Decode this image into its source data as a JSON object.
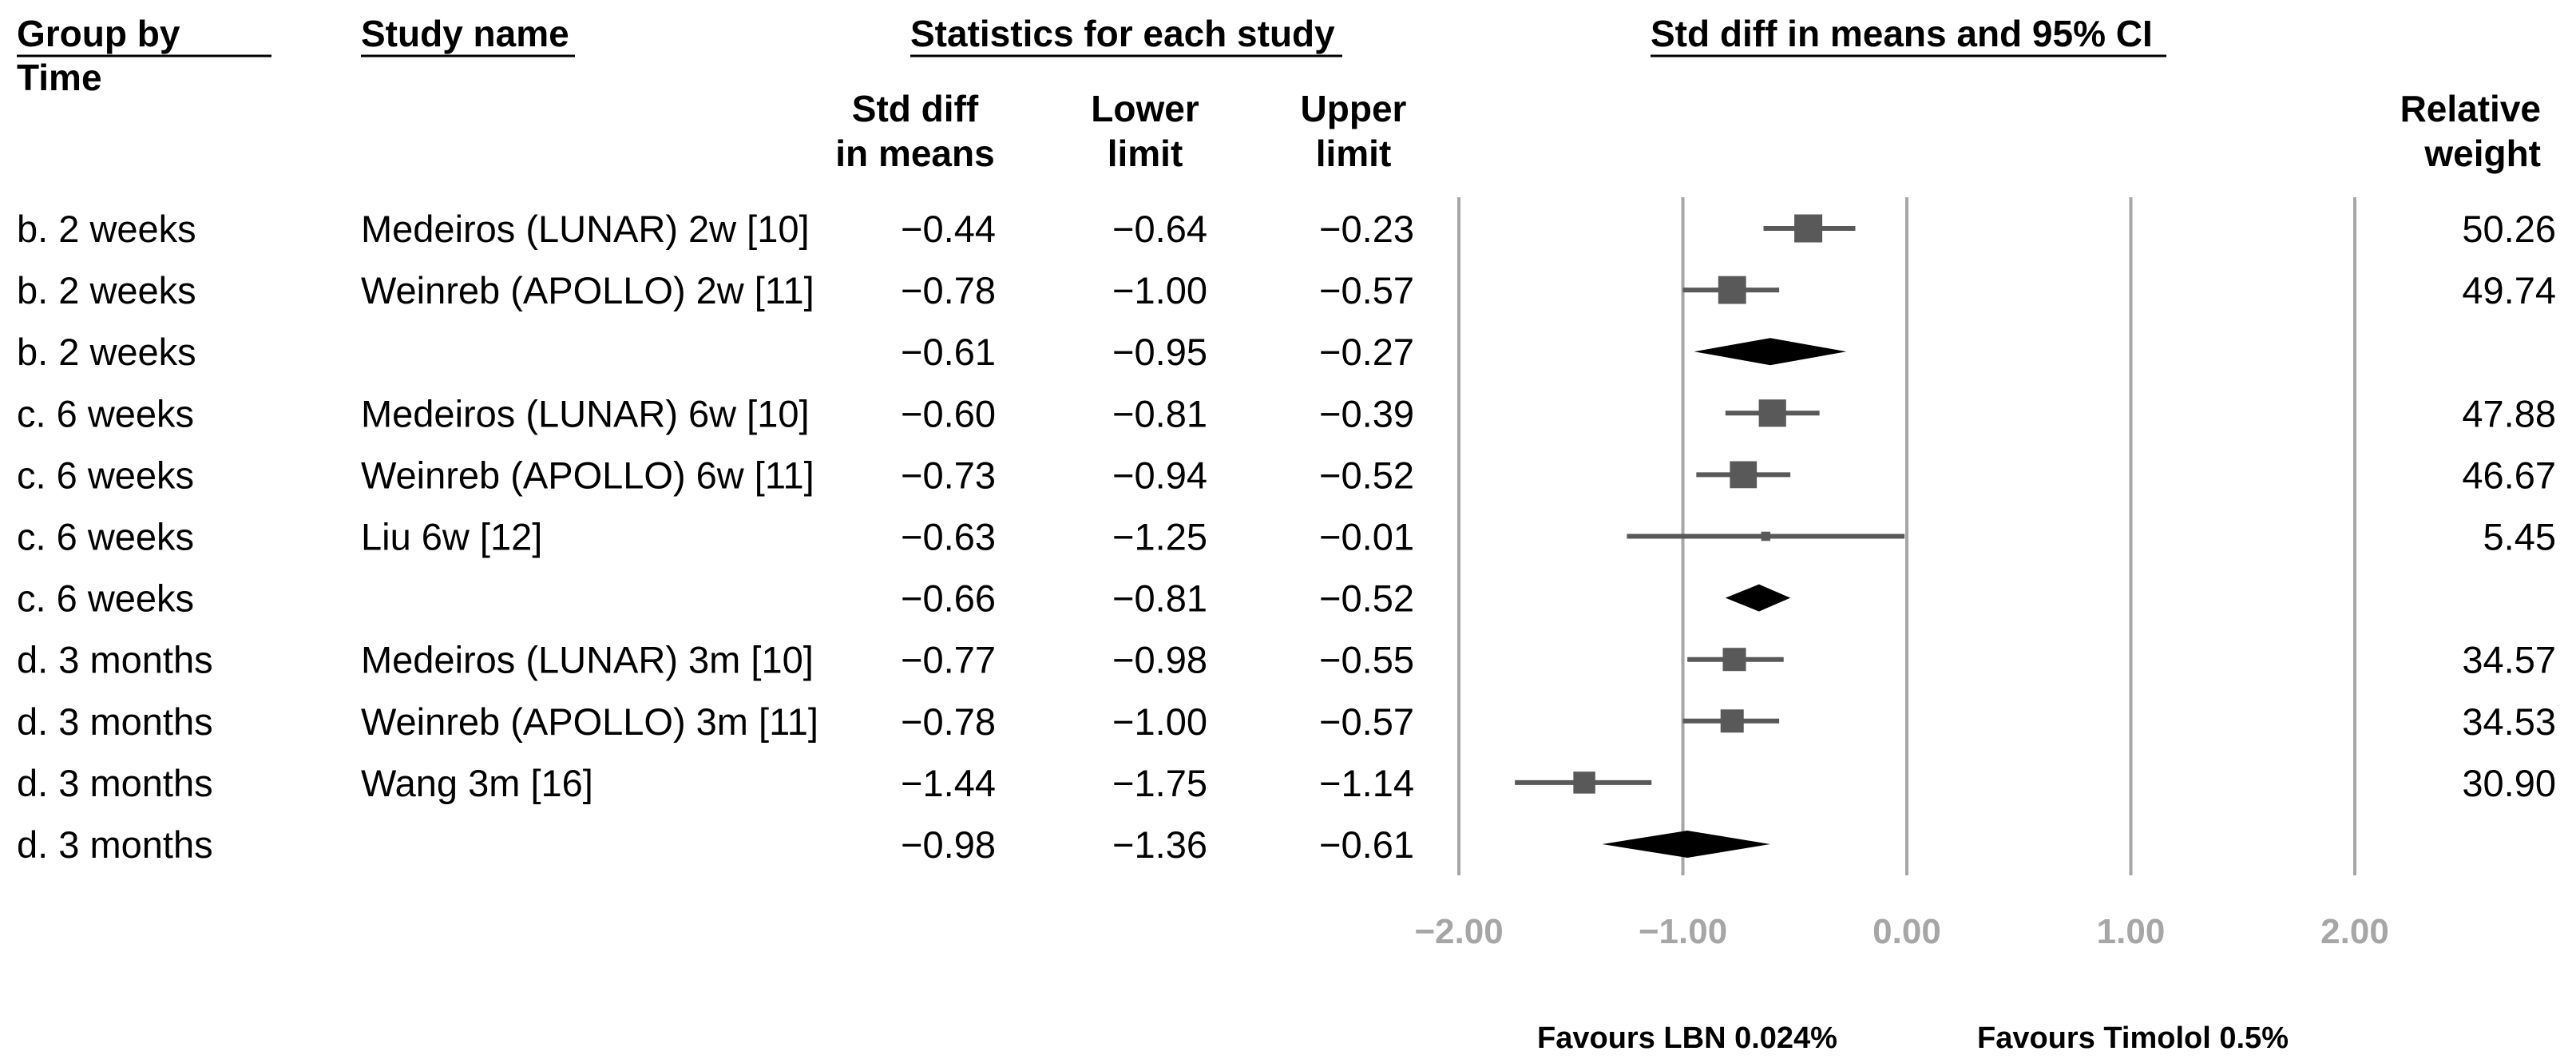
{
  "headers": {
    "group_by": "Group by",
    "time": "Time",
    "study_name": "Study name",
    "statistics": "Statistics for each study",
    "smd_line1": "Std diff",
    "smd_line2": "in means",
    "lower_line1": "Lower",
    "lower_line2": "limit",
    "upper_line1": "Upper",
    "upper_line2": "limit",
    "weight_line1": "Relative",
    "weight_line2": "weight"
  },
  "chart_data": {
    "type": "forest",
    "title": "Std diff in means and 95% CI",
    "xlim": [
      -2,
      2
    ],
    "ticks": [
      -2,
      -1,
      0,
      1,
      2
    ],
    "tick_labels": [
      "−2.00",
      "−1.00",
      "0.00",
      "1.00",
      "2.00"
    ],
    "favours_left": "Favours LBN 0.024%",
    "favours_right": "Favours Timolol 0.5%",
    "colors": {
      "grid": "#a6a6a6",
      "study": "#595959",
      "summary": "#000000"
    },
    "rows": [
      {
        "group": "b. 2 weeks",
        "study": "Medeiros (LUNAR) 2w [10]",
        "smd": -0.44,
        "lower": -0.64,
        "upper": -0.23,
        "weight": 50.26,
        "smd_label": "−0.44",
        "lower_label": "−0.64",
        "upper_label": "−0.23",
        "weight_label": "50.26"
      },
      {
        "group": "b. 2 weeks",
        "study": "Weinreb (APOLLO) 2w [11]",
        "smd": -0.78,
        "lower": -1.0,
        "upper": -0.57,
        "weight": 49.74,
        "smd_label": "−0.78",
        "lower_label": "−1.00",
        "upper_label": "−0.57",
        "weight_label": "49.74"
      },
      {
        "group": "b. 2 weeks",
        "summary": true,
        "smd": -0.61,
        "lower": -0.95,
        "upper": -0.27,
        "smd_label": "−0.61",
        "lower_label": "−0.95",
        "upper_label": "−0.27"
      },
      {
        "group": "c. 6 weeks",
        "study": "Medeiros (LUNAR) 6w [10]",
        "smd": -0.6,
        "lower": -0.81,
        "upper": -0.39,
        "weight": 47.88,
        "smd_label": "−0.60",
        "lower_label": "−0.81",
        "upper_label": "−0.39",
        "weight_label": "47.88"
      },
      {
        "group": "c. 6 weeks",
        "study": "Weinreb (APOLLO) 6w [11]",
        "smd": -0.73,
        "lower": -0.94,
        "upper": -0.52,
        "weight": 46.67,
        "smd_label": "−0.73",
        "lower_label": "−0.94",
        "upper_label": "−0.52",
        "weight_label": "46.67"
      },
      {
        "group": "c. 6 weeks",
        "study": "Liu 6w [12]",
        "smd": -0.63,
        "lower": -1.25,
        "upper": -0.01,
        "weight": 5.45,
        "smd_label": "−0.63",
        "lower_label": "−1.25",
        "upper_label": "−0.01",
        "weight_label": "5.45"
      },
      {
        "group": "c. 6 weeks",
        "summary": true,
        "smd": -0.66,
        "lower": -0.81,
        "upper": -0.52,
        "smd_label": "−0.66",
        "lower_label": "−0.81",
        "upper_label": "−0.52"
      },
      {
        "group": "d. 3 months",
        "study": "Medeiros (LUNAR) 3m [10]",
        "smd": -0.77,
        "lower": -0.98,
        "upper": -0.55,
        "weight": 34.57,
        "smd_label": "−0.77",
        "lower_label": "−0.98",
        "upper_label": "−0.55",
        "weight_label": "34.57"
      },
      {
        "group": "d. 3 months",
        "study": "Weinreb (APOLLO) 3m [11]",
        "smd": -0.78,
        "lower": -1.0,
        "upper": -0.57,
        "weight": 34.53,
        "smd_label": "−0.78",
        "lower_label": "−1.00",
        "upper_label": "−0.57",
        "weight_label": "34.53"
      },
      {
        "group": "d. 3 months",
        "study": "Wang 3m [16]",
        "smd": -1.44,
        "lower": -1.75,
        "upper": -1.14,
        "weight": 30.9,
        "smd_label": "−1.44",
        "lower_label": "−1.75",
        "upper_label": "−1.14",
        "weight_label": "30.90"
      },
      {
        "group": "d. 3 months",
        "summary": true,
        "smd": -0.98,
        "lower": -1.36,
        "upper": -0.61,
        "smd_label": "−0.98",
        "lower_label": "−1.36",
        "upper_label": "−0.61"
      }
    ]
  }
}
